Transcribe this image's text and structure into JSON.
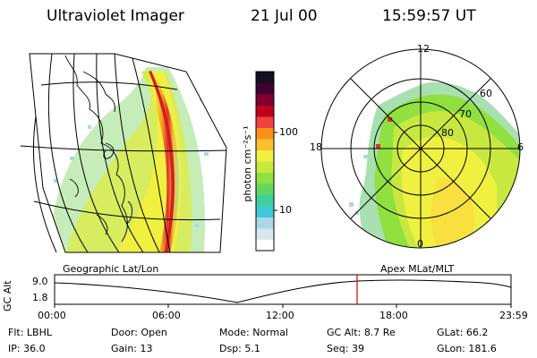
{
  "header": {
    "instrument": "Ultraviolet Imager",
    "date": "21 Jul 00",
    "time": "15:59:57 UT"
  },
  "colorbar": {
    "unit_label": "photon cm⁻²s⁻¹",
    "ticks": [
      "100",
      "10"
    ],
    "colors": [
      "#ffffff",
      "#dbe7f0",
      "#a8d8e8",
      "#40c8d8",
      "#40d0a0",
      "#60d860",
      "#90e040",
      "#c8e840",
      "#f0f040",
      "#f8c030",
      "#f89018",
      "#f04040",
      "#c00020",
      "#800030",
      "#400030",
      "#101020"
    ]
  },
  "panels": {
    "left_label": "Geographic Lat/Lon",
    "right_label": "Apex MLat/MLT",
    "polar": {
      "mlt_labels": [
        "12",
        "18",
        "6",
        "0"
      ],
      "mlat_labels": [
        "60",
        "70",
        "80"
      ]
    }
  },
  "timeline": {
    "y_axis_title": "GC Alt",
    "y_ticks": [
      "9.0",
      "1.8"
    ],
    "x_ticks": [
      "00:00",
      "06:00",
      "12:00",
      "18:00",
      "23:59"
    ]
  },
  "status": {
    "row1": [
      {
        "label": "Flt:",
        "value": "LBHL"
      },
      {
        "label": "Door:",
        "value": "Open"
      },
      {
        "label": "Mode:",
        "value": "Normal"
      },
      {
        "label": "GC Alt:",
        "value": "8.7 Re"
      },
      {
        "label": "GLat:",
        "value": "66.2"
      }
    ],
    "row2": [
      {
        "label": "IP:",
        "value": "36.0"
      },
      {
        "label": "Gain:",
        "value": "13"
      },
      {
        "label": "Dsp:",
        "value": "5.1"
      },
      {
        "label": "Seq:",
        "value": "39"
      },
      {
        "label": "GLon:",
        "value": "181.6"
      }
    ]
  }
}
